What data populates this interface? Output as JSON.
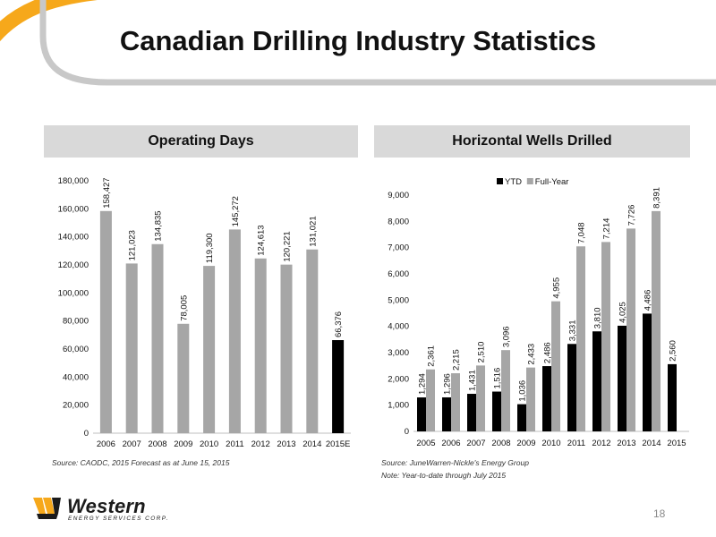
{
  "title": "Canadian Drilling Industry Statistics",
  "colors": {
    "accent": "#f6a81b",
    "frame_gray": "#c8c8c8",
    "header_bg": "#d9d9d9",
    "bar_gray": "#a6a6a6",
    "bar_black": "#000000"
  },
  "panels": {
    "left": {
      "heading": "Operating Days",
      "source": "Source: CAODC, 2015 Forecast as at June 15, 2015"
    },
    "right": {
      "heading": "Horizontal Wells Drilled",
      "source": "Source: JuneWarren-Nickle's Energy Group",
      "note": "Note: Year-to-date through July 2015"
    }
  },
  "footer": {
    "logo_word": "Western",
    "logo_sub": "ENERGY SERVICES CORP.",
    "page_number": "18"
  },
  "chart_data": [
    {
      "type": "bar",
      "categories": [
        "2006",
        "2007",
        "2008",
        "2009",
        "2010",
        "2011",
        "2012",
        "2013",
        "2014",
        "2015E"
      ],
      "values": [
        158427,
        121023,
        134835,
        78005,
        119300,
        145272,
        124613,
        120221,
        131021,
        66376
      ],
      "value_labels": [
        "158,427",
        "121,023",
        "134,835",
        "78,005",
        "119,300",
        "145,272",
        "124,613",
        "120,221",
        "131,021",
        "66,376"
      ],
      "bar_colors": [
        "#a6a6a6",
        "#a6a6a6",
        "#a6a6a6",
        "#a6a6a6",
        "#a6a6a6",
        "#a6a6a6",
        "#a6a6a6",
        "#a6a6a6",
        "#a6a6a6",
        "#000000"
      ],
      "ylim": [
        0,
        180000
      ],
      "yticks": [
        0,
        20000,
        40000,
        60000,
        80000,
        100000,
        120000,
        140000,
        160000,
        180000
      ],
      "ytick_labels": [
        "0",
        "20,000",
        "40,000",
        "60,000",
        "80,000",
        "100,000",
        "120,000",
        "140,000",
        "160,000",
        "180,000"
      ],
      "title": "",
      "xlabel": "",
      "ylabel": "",
      "grid": false
    },
    {
      "type": "bar",
      "categories": [
        "2005",
        "2006",
        "2007",
        "2008",
        "2009",
        "2010",
        "2011",
        "2012",
        "2013",
        "2014",
        "2015"
      ],
      "series": [
        {
          "name": "YTD",
          "color": "#000000",
          "values": [
            1294,
            1296,
            1431,
            1516,
            1036,
            2486,
            3331,
            3810,
            4025,
            4486,
            2560
          ],
          "value_labels": [
            "1,294",
            "1,296",
            "1,431",
            "1,516",
            "1,036",
            "2,486",
            "3,331",
            "3,810",
            "4,025",
            "4,486",
            "2,560"
          ]
        },
        {
          "name": "Full-Year",
          "color": "#a6a6a6",
          "values": [
            2361,
            2215,
            2510,
            3096,
            2433,
            4955,
            7048,
            7214,
            7726,
            8391,
            null
          ],
          "value_labels": [
            "2,361",
            "2,215",
            "2,510",
            "3,096",
            "2,433",
            "4,955",
            "7,048",
            "7,214",
            "7,726",
            "8,391",
            ""
          ]
        }
      ],
      "ylim": [
        0,
        9000
      ],
      "yticks": [
        0,
        1000,
        2000,
        3000,
        4000,
        5000,
        6000,
        7000,
        8000,
        9000
      ],
      "ytick_labels": [
        "0",
        "1,000",
        "2,000",
        "3,000",
        "4,000",
        "5,000",
        "6,000",
        "7,000",
        "8,000",
        "9,000"
      ],
      "legend": "top-left",
      "title": "",
      "xlabel": "",
      "ylabel": "",
      "grid": false
    }
  ]
}
